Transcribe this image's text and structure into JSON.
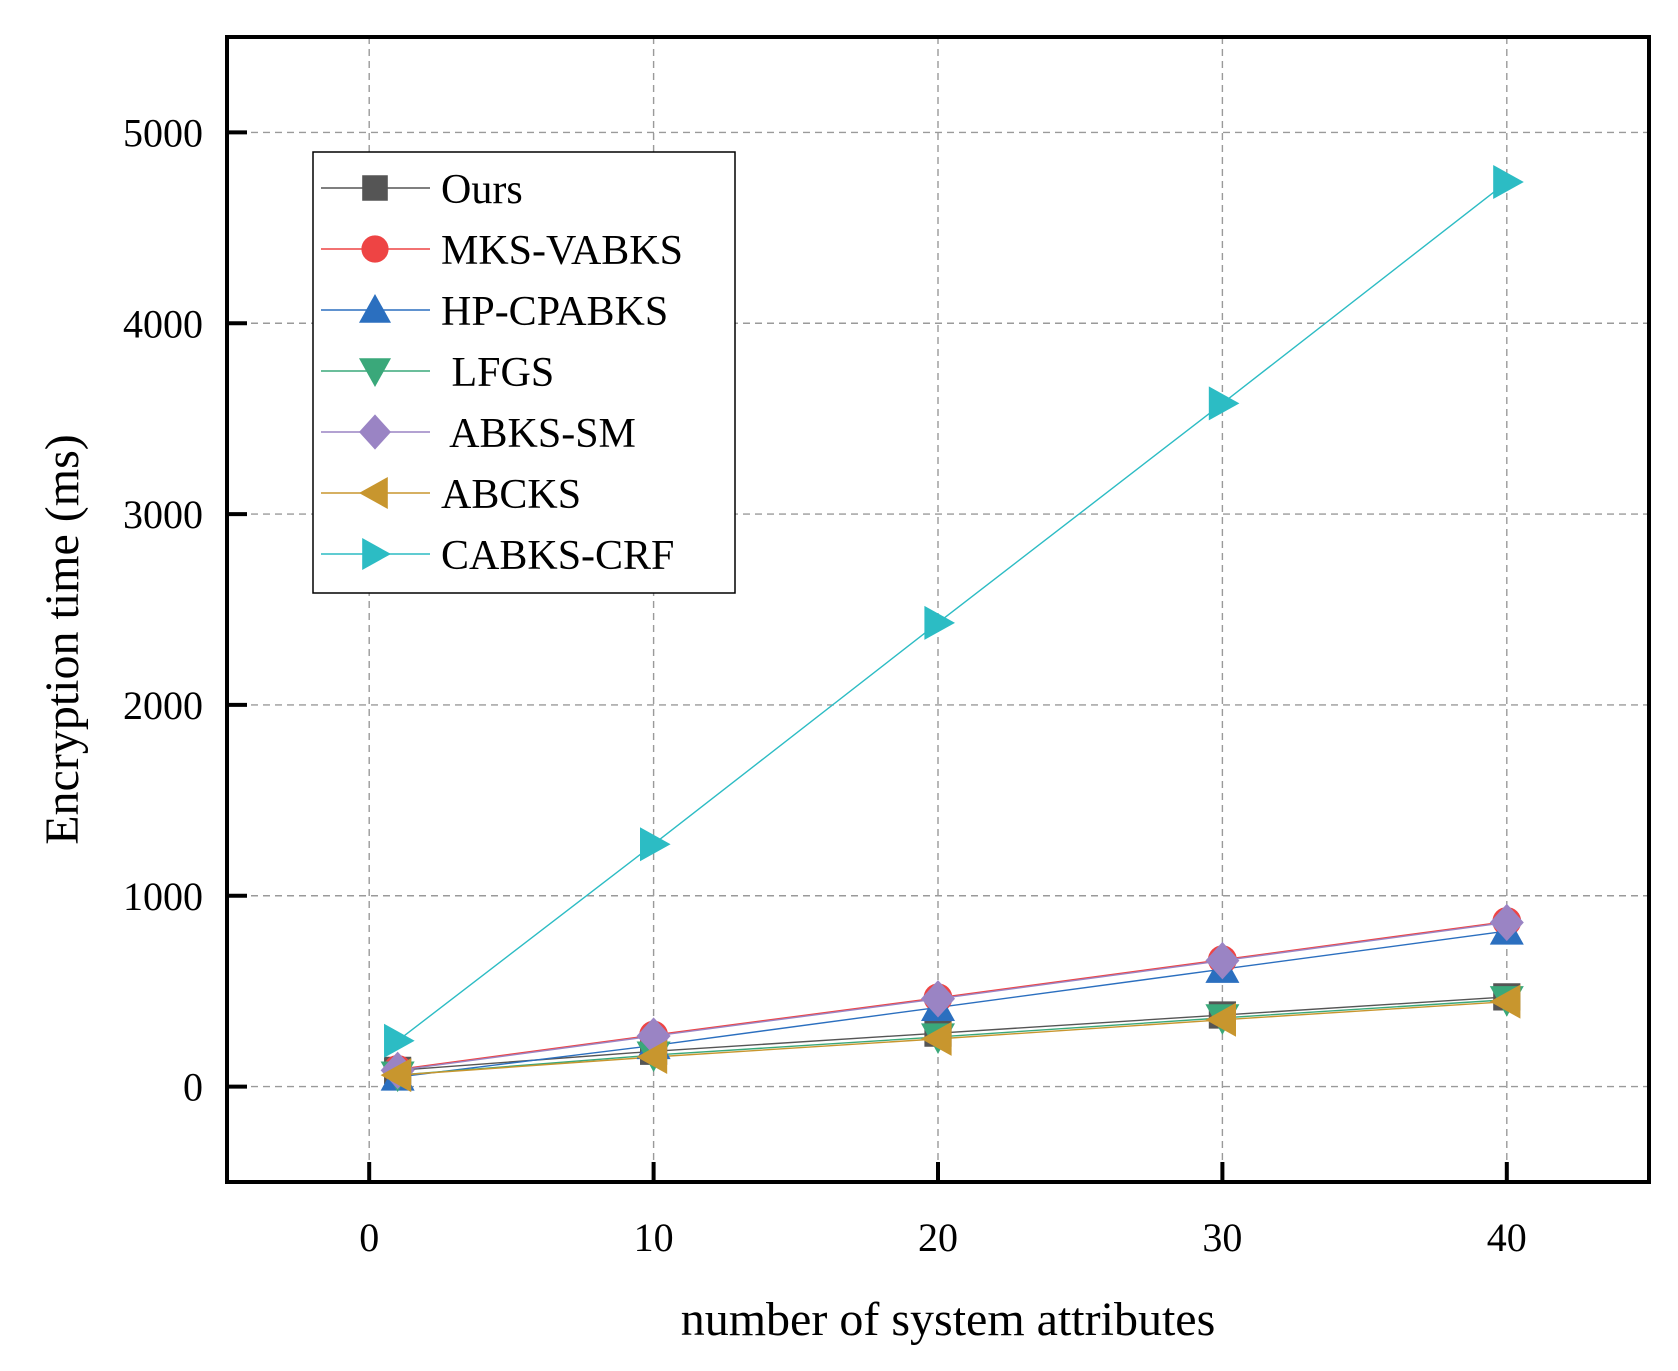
{
  "chart_data": {
    "type": "line",
    "xlabel": "number of system attributes",
    "ylabel": "Encryption time (ms)",
    "xlim": [
      -5,
      45
    ],
    "ylim": [
      -500,
      5500
    ],
    "xticks": [
      0,
      10,
      20,
      30,
      40
    ],
    "yticks": [
      0,
      1000,
      2000,
      3000,
      4000,
      5000
    ],
    "grid": true,
    "legend_position": "top-left",
    "x": [
      1,
      10,
      20,
      30,
      40
    ],
    "series": [
      {
        "name": "Ours",
        "marker": "square",
        "color": "#555555",
        "values": [
          85,
          185,
          280,
          375,
          470
        ]
      },
      {
        "name": "MKS-VABKS",
        "marker": "circle",
        "color": "#ee4444",
        "values": [
          90,
          270,
          465,
          665,
          865
        ]
      },
      {
        "name": "HP-CPABKS",
        "marker": "triangle-up",
        "color": "#2b6fbf",
        "values": [
          50,
          215,
          415,
          615,
          815
        ]
      },
      {
        "name": " LFGS",
        "marker": "triangle-down",
        "color": "#3aa87a",
        "values": [
          60,
          165,
          260,
          360,
          455
        ]
      },
      {
        "name": " ABKS-SM",
        "marker": "diamond",
        "color": "#9a84c4",
        "values": [
          85,
          265,
          460,
          660,
          860
        ]
      },
      {
        "name": "ABCKS",
        "marker": "triangle-left",
        "color": "#c8962e",
        "values": [
          60,
          155,
          250,
          350,
          445
        ]
      },
      {
        "name": "CABKS-CRF",
        "marker": "triangle-right",
        "color": "#2cbcc4",
        "values": [
          240,
          1270,
          2430,
          3580,
          4740
        ]
      }
    ]
  }
}
